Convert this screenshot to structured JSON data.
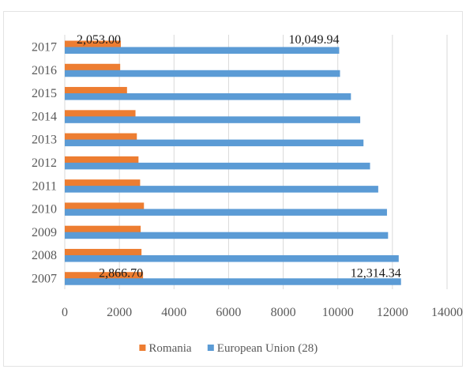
{
  "chart_data": {
    "type": "bar",
    "orientation": "horizontal",
    "categories": [
      "2007",
      "2008",
      "2009",
      "2010",
      "2011",
      "2012",
      "2013",
      "2014",
      "2015",
      "2016",
      "2017"
    ],
    "series": [
      {
        "name": "Romania",
        "color": "#ed7d31",
        "values": [
          2866.7,
          2810,
          2780,
          2900,
          2760,
          2700,
          2640,
          2590,
          2280,
          2030,
          2053.0
        ]
      },
      {
        "name": "European Union (28)",
        "color": "#5b9bd5",
        "values": [
          12314.34,
          12230,
          11840,
          11800,
          11480,
          11180,
          10940,
          10820,
          10480,
          10080,
          10049.94
        ]
      }
    ],
    "data_labels": [
      {
        "series": 0,
        "category": "2017",
        "text": "2,053.00"
      },
      {
        "series": 1,
        "category": "2017",
        "text": "10,049.94"
      },
      {
        "series": 0,
        "category": "2007",
        "text": "2,866.70"
      },
      {
        "series": 1,
        "category": "2007",
        "text": "12,314.34"
      }
    ],
    "xlim": [
      0,
      14000
    ],
    "x_ticks": [
      "0",
      "2000",
      "4000",
      "6000",
      "8000",
      "10000",
      "12000",
      "14000"
    ],
    "gridlines": true,
    "legend_position": "bottom",
    "title": "",
    "xlabel": "",
    "ylabel": ""
  }
}
